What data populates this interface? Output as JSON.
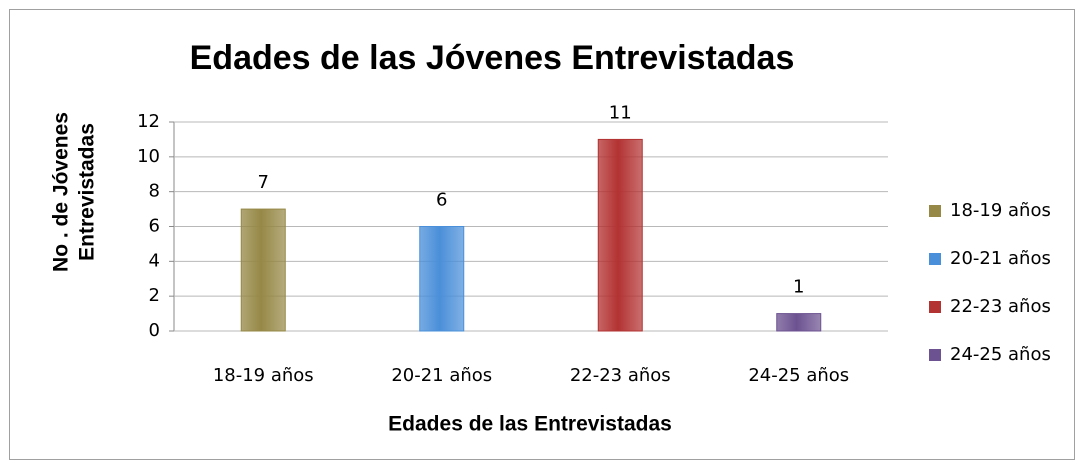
{
  "chart_data": {
    "type": "bar",
    "title": "Edades de las Jóvenes Entrevistadas",
    "xlabel": "Edades de las Entrevistadas",
    "ylabel": [
      "No . de Jóvenes",
      "Entrevistadas"
    ],
    "categories": [
      "18-19 años",
      "20-21 años",
      "22-23 años",
      "24-25 años"
    ],
    "values": [
      7,
      6,
      11,
      1
    ],
    "colors": [
      "#968846",
      "#4a8fd9",
      "#b33232",
      "#6c5290"
    ],
    "ylim": [
      0,
      12
    ],
    "yticks": [
      0,
      2,
      4,
      6,
      8,
      10,
      12
    ],
    "grid": true,
    "legend": "right"
  }
}
